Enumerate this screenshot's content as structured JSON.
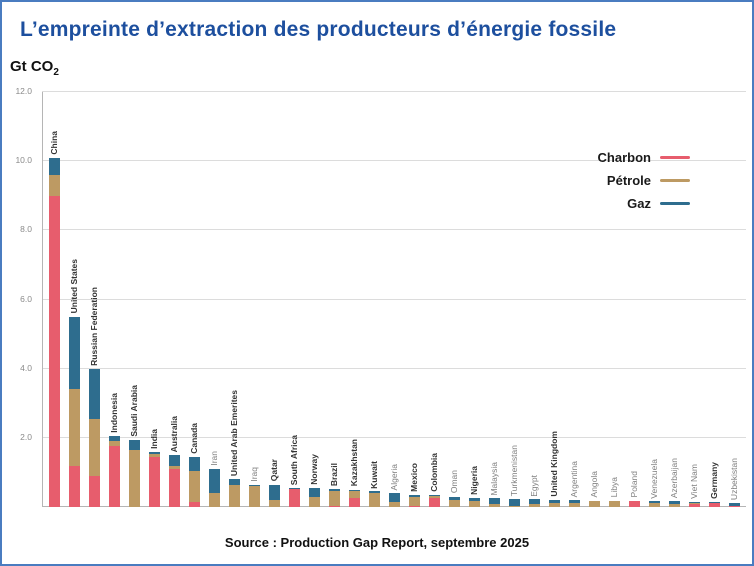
{
  "title": "L’empreinte d’extraction des producteurs d’énergie fossile",
  "y_axis_title": "Gt CO",
  "y_axis_title_sub": "2",
  "source": "Source : Production Gap Report, septembre 2025",
  "legend": [
    {
      "label": "Charbon",
      "color": "#e75d6d"
    },
    {
      "label": "Pétrole",
      "color": "#bd9a63"
    },
    {
      "label": "Gaz",
      "color": "#2e6d8e"
    }
  ],
  "colors": {
    "title": "#1d4f9e",
    "frame_border": "#4a7cc0",
    "coal": "#e75d6d",
    "oil": "#bd9a63",
    "gas": "#2e6d8e"
  },
  "chart_data": {
    "type": "bar",
    "stacked": true,
    "title": "L’empreinte d’extraction des producteurs d’énergie fossile",
    "xlabel": "",
    "ylabel": "Gt CO2",
    "ylim": [
      0,
      12
    ],
    "yticks": [
      2,
      4,
      6,
      8,
      10,
      12
    ],
    "grid": true,
    "legend_position": "top-right",
    "categories": [
      "China",
      "United States",
      "Russian Federation",
      "Indonesia",
      "Saudi Arabia",
      "India",
      "Australia",
      "Canada",
      "Iran",
      "United Arab Emerites",
      "Iraq",
      "Qatar",
      "South Africa",
      "Norway",
      "Brazil",
      "Kazakhstan",
      "Kuwait",
      "Algeria",
      "Mexico",
      "Colombia",
      "Oman",
      "Nigeria",
      "Malaysia",
      "Turkmenistan",
      "Egypt",
      "United Kingdom",
      "Argentina",
      "Angola",
      "Libya",
      "Poland",
      "Venezuela",
      "Azerbaijan",
      "Viet Nam",
      "Germany",
      "Uzbekistan"
    ],
    "bold_labels": [
      true,
      true,
      true,
      true,
      true,
      true,
      true,
      true,
      false,
      true,
      false,
      true,
      true,
      true,
      true,
      true,
      true,
      false,
      true,
      true,
      false,
      true,
      false,
      false,
      false,
      true,
      false,
      false,
      false,
      false,
      false,
      false,
      false,
      true,
      false
    ],
    "series": [
      {
        "name": "Charbon",
        "color": "#e75d6d",
        "values": [
          9.0,
          1.2,
          0.9,
          1.75,
          0,
          1.45,
          1.1,
          0.15,
          0,
          0,
          0,
          0,
          0.52,
          0,
          0.02,
          0.25,
          0,
          0,
          0.02,
          0.27,
          0,
          0,
          0,
          0,
          0,
          0,
          0,
          0,
          0,
          0.16,
          0,
          0,
          0.1,
          0.12,
          0.02
        ]
      },
      {
        "name": "Pétrole",
        "color": "#bd9a63",
        "values": [
          0.6,
          2.2,
          1.65,
          0.15,
          1.65,
          0.08,
          0.08,
          0.9,
          0.4,
          0.65,
          0.6,
          0.2,
          0,
          0.3,
          0.45,
          0.2,
          0.4,
          0.15,
          0.28,
          0.06,
          0.2,
          0.18,
          0.1,
          0.02,
          0.1,
          0.12,
          0.12,
          0.16,
          0.16,
          0,
          0.13,
          0.08,
          0.03,
          0,
          0.02
        ]
      },
      {
        "name": "Gaz",
        "color": "#2e6d8e",
        "values": [
          0.5,
          2.1,
          1.45,
          0.15,
          0.3,
          0.07,
          0.32,
          0.4,
          0.7,
          0.15,
          0.05,
          0.45,
          0.03,
          0.25,
          0.05,
          0.05,
          0.05,
          0.25,
          0.05,
          0.02,
          0.1,
          0.08,
          0.15,
          0.2,
          0.12,
          0.08,
          0.08,
          0.02,
          0.02,
          0.02,
          0.03,
          0.08,
          0.02,
          0.02,
          0.08
        ]
      }
    ]
  }
}
